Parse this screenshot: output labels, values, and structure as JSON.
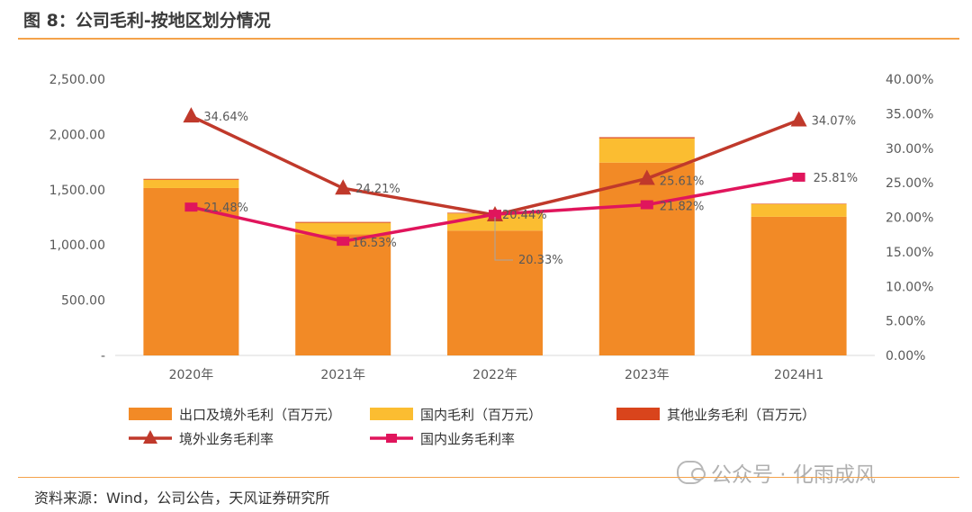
{
  "figure": {
    "title": "图 8：公司毛利-按地区划分情况",
    "source": "资料来源：Wind，公司公告，天风证券研究所",
    "watermark": "公众号 · 化雨成风"
  },
  "chart_data": {
    "type": "bar",
    "stacked": true,
    "categories": [
      "2020年",
      "2021年",
      "2022年",
      "2023年",
      "2024H1"
    ],
    "y_left": {
      "lim": [
        0,
        2500
      ],
      "ticks": [
        "-",
        "500.00",
        "1,000.00",
        "1,500.00",
        "2,000.00",
        "2,500.00"
      ],
      "tick_values": [
        0,
        500,
        1000,
        1500,
        2000,
        2500
      ]
    },
    "y_right": {
      "lim": [
        0,
        40
      ],
      "ticks": [
        "0.00%",
        "5.00%",
        "10.00%",
        "15.00%",
        "20.00%",
        "25.00%",
        "30.00%",
        "35.00%",
        "40.00%"
      ],
      "tick_values": [
        0,
        5,
        10,
        15,
        20,
        25,
        30,
        35,
        40
      ]
    },
    "bar_series": [
      {
        "name": "出口及境外毛利（百万元）",
        "color": "#f28a26",
        "values": [
          1515,
          1095,
          1130,
          1745,
          1255
        ]
      },
      {
        "name": "国内毛利（百万元）",
        "color": "#fbbd31",
        "values": [
          75,
          105,
          155,
          220,
          115
        ]
      },
      {
        "name": "其他业务毛利（百万元）",
        "color": "#d9441c",
        "values": [
          8,
          8,
          6,
          10,
          4
        ]
      }
    ],
    "line_series": [
      {
        "name": "境外业务毛利率",
        "color": "#c0392b",
        "marker": "triangle",
        "values": [
          34.64,
          24.21,
          20.33,
          25.61,
          34.07
        ],
        "labels": [
          "34.64%",
          "24.21%",
          "20.33%",
          "25.61%",
          "34.07%"
        ]
      },
      {
        "name": "国内业务毛利率",
        "color": "#e0155c",
        "marker": "square",
        "values": [
          21.48,
          16.53,
          20.44,
          21.82,
          25.81
        ],
        "labels": [
          "21.48%",
          "16.53%",
          "20.44%",
          "21.82%",
          "25.81%"
        ]
      }
    ],
    "grid": false,
    "legend": "bottom"
  }
}
